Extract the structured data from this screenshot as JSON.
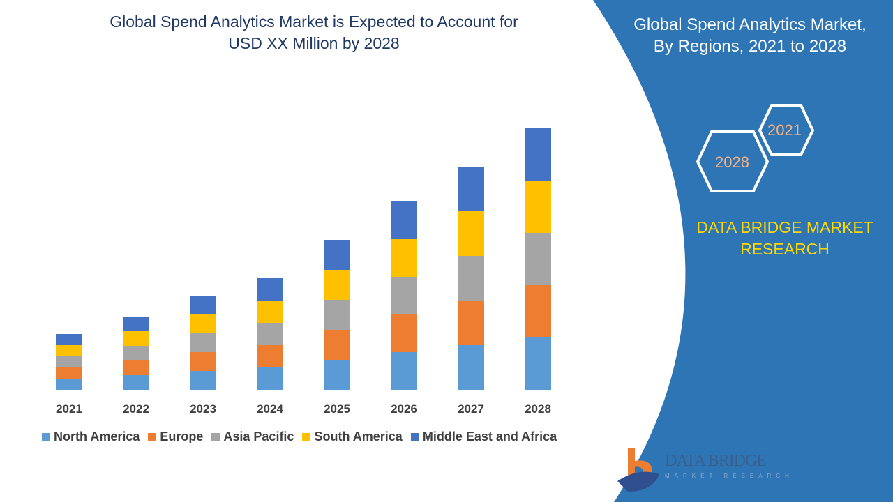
{
  "header": {
    "title_line1": "Global Spend Analytics Market is Expected to Account for",
    "title_line2": "USD XX Million by 2028"
  },
  "side_panel": {
    "title_line1": "Global Spend Analytics Market,",
    "title_line2": "By Regions, 2021 to 2028",
    "hex_start": "2021",
    "hex_end": "2028",
    "brand_line1": "DATA BRIDGE MARKET",
    "brand_line2": "RESEARCH",
    "panel_color": "#2E75B6"
  },
  "logo": {
    "name": "DATA BRIDGE",
    "sub": "MARKET RESEARCH"
  },
  "chart_data": {
    "type": "bar",
    "stacked": true,
    "title": "",
    "xlabel": "",
    "ylabel": "",
    "y_axis_shown": false,
    "grid": false,
    "legend_position": "bottom",
    "categories": [
      "2021",
      "2022",
      "2023",
      "2024",
      "2025",
      "2026",
      "2027",
      "2028"
    ],
    "series": [
      {
        "name": "North America",
        "color": "#5B9BD5",
        "values": [
          16,
          21,
          27,
          32,
          43,
          54,
          64,
          75
        ]
      },
      {
        "name": "Europe",
        "color": "#ED7D31",
        "values": [
          16,
          21,
          27,
          32,
          43,
          54,
          64,
          75
        ]
      },
      {
        "name": "Asia Pacific",
        "color": "#A5A5A5",
        "values": [
          16,
          21,
          27,
          32,
          43,
          54,
          64,
          75
        ]
      },
      {
        "name": "South America",
        "color": "#FFC000",
        "values": [
          16,
          21,
          27,
          32,
          43,
          54,
          64,
          75
        ]
      },
      {
        "name": "Middle East and Africa",
        "color": "#4472C4",
        "values": [
          16,
          21,
          27,
          32,
          43,
          54,
          64,
          75
        ]
      }
    ]
  }
}
